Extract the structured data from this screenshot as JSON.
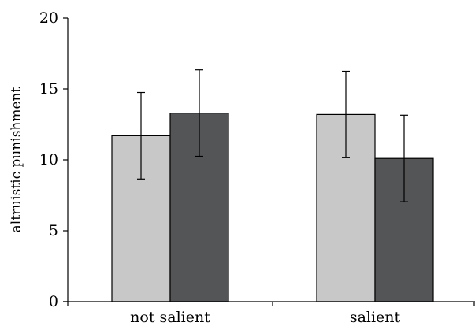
{
  "chart_data": {
    "type": "bar",
    "ylabel": "altruistic punishment",
    "xlabel": "",
    "title": "",
    "categories": [
      "not salient",
      "salient"
    ],
    "series": [
      {
        "color": "#c8c8c8",
        "values": [
          11.7,
          13.2
        ],
        "error": [
          3.05,
          3.05
        ]
      },
      {
        "color": "#545556",
        "values": [
          13.3,
          10.1
        ],
        "error": [
          3.05,
          3.05
        ]
      }
    ],
    "ylim": [
      0,
      20
    ],
    "yticks": [
      0,
      5,
      10,
      15,
      20
    ],
    "grid": false,
    "legend": false
  }
}
